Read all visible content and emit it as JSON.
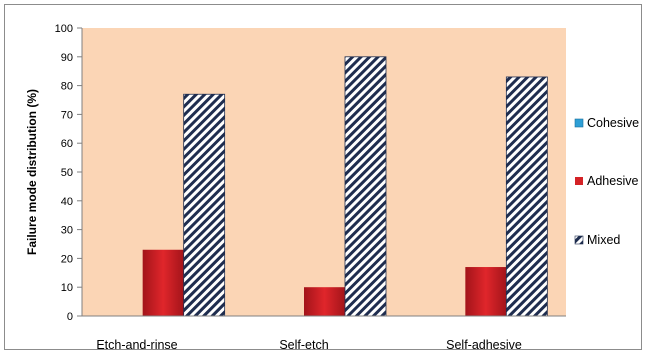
{
  "chart_data": {
    "type": "bar",
    "title": "",
    "xlabel": "",
    "ylabel": "Failure mode distribution (%)",
    "categories": [
      "Etch-and-rinse",
      "Self-etch",
      "Self-adhesive"
    ],
    "ylim": [
      0,
      100
    ],
    "yticks": [
      "0",
      "10",
      "20",
      "30",
      "40",
      "50",
      "60",
      "70",
      "80",
      "90",
      "100"
    ],
    "grid": false,
    "legend_position": "right",
    "plot_background": "#fbd5b5",
    "series": [
      {
        "name": "Cohesive",
        "values": [
          0,
          0,
          0
        ],
        "color": "#2e9fd6",
        "pattern": "solid"
      },
      {
        "name": "Adhesive",
        "values": [
          23,
          10,
          17
        ],
        "color": "#d42226",
        "pattern": "solid"
      },
      {
        "name": "Mixed",
        "values": [
          77,
          90,
          83
        ],
        "color": "#1f2d4f",
        "pattern": "diagonal-stripes"
      }
    ]
  }
}
